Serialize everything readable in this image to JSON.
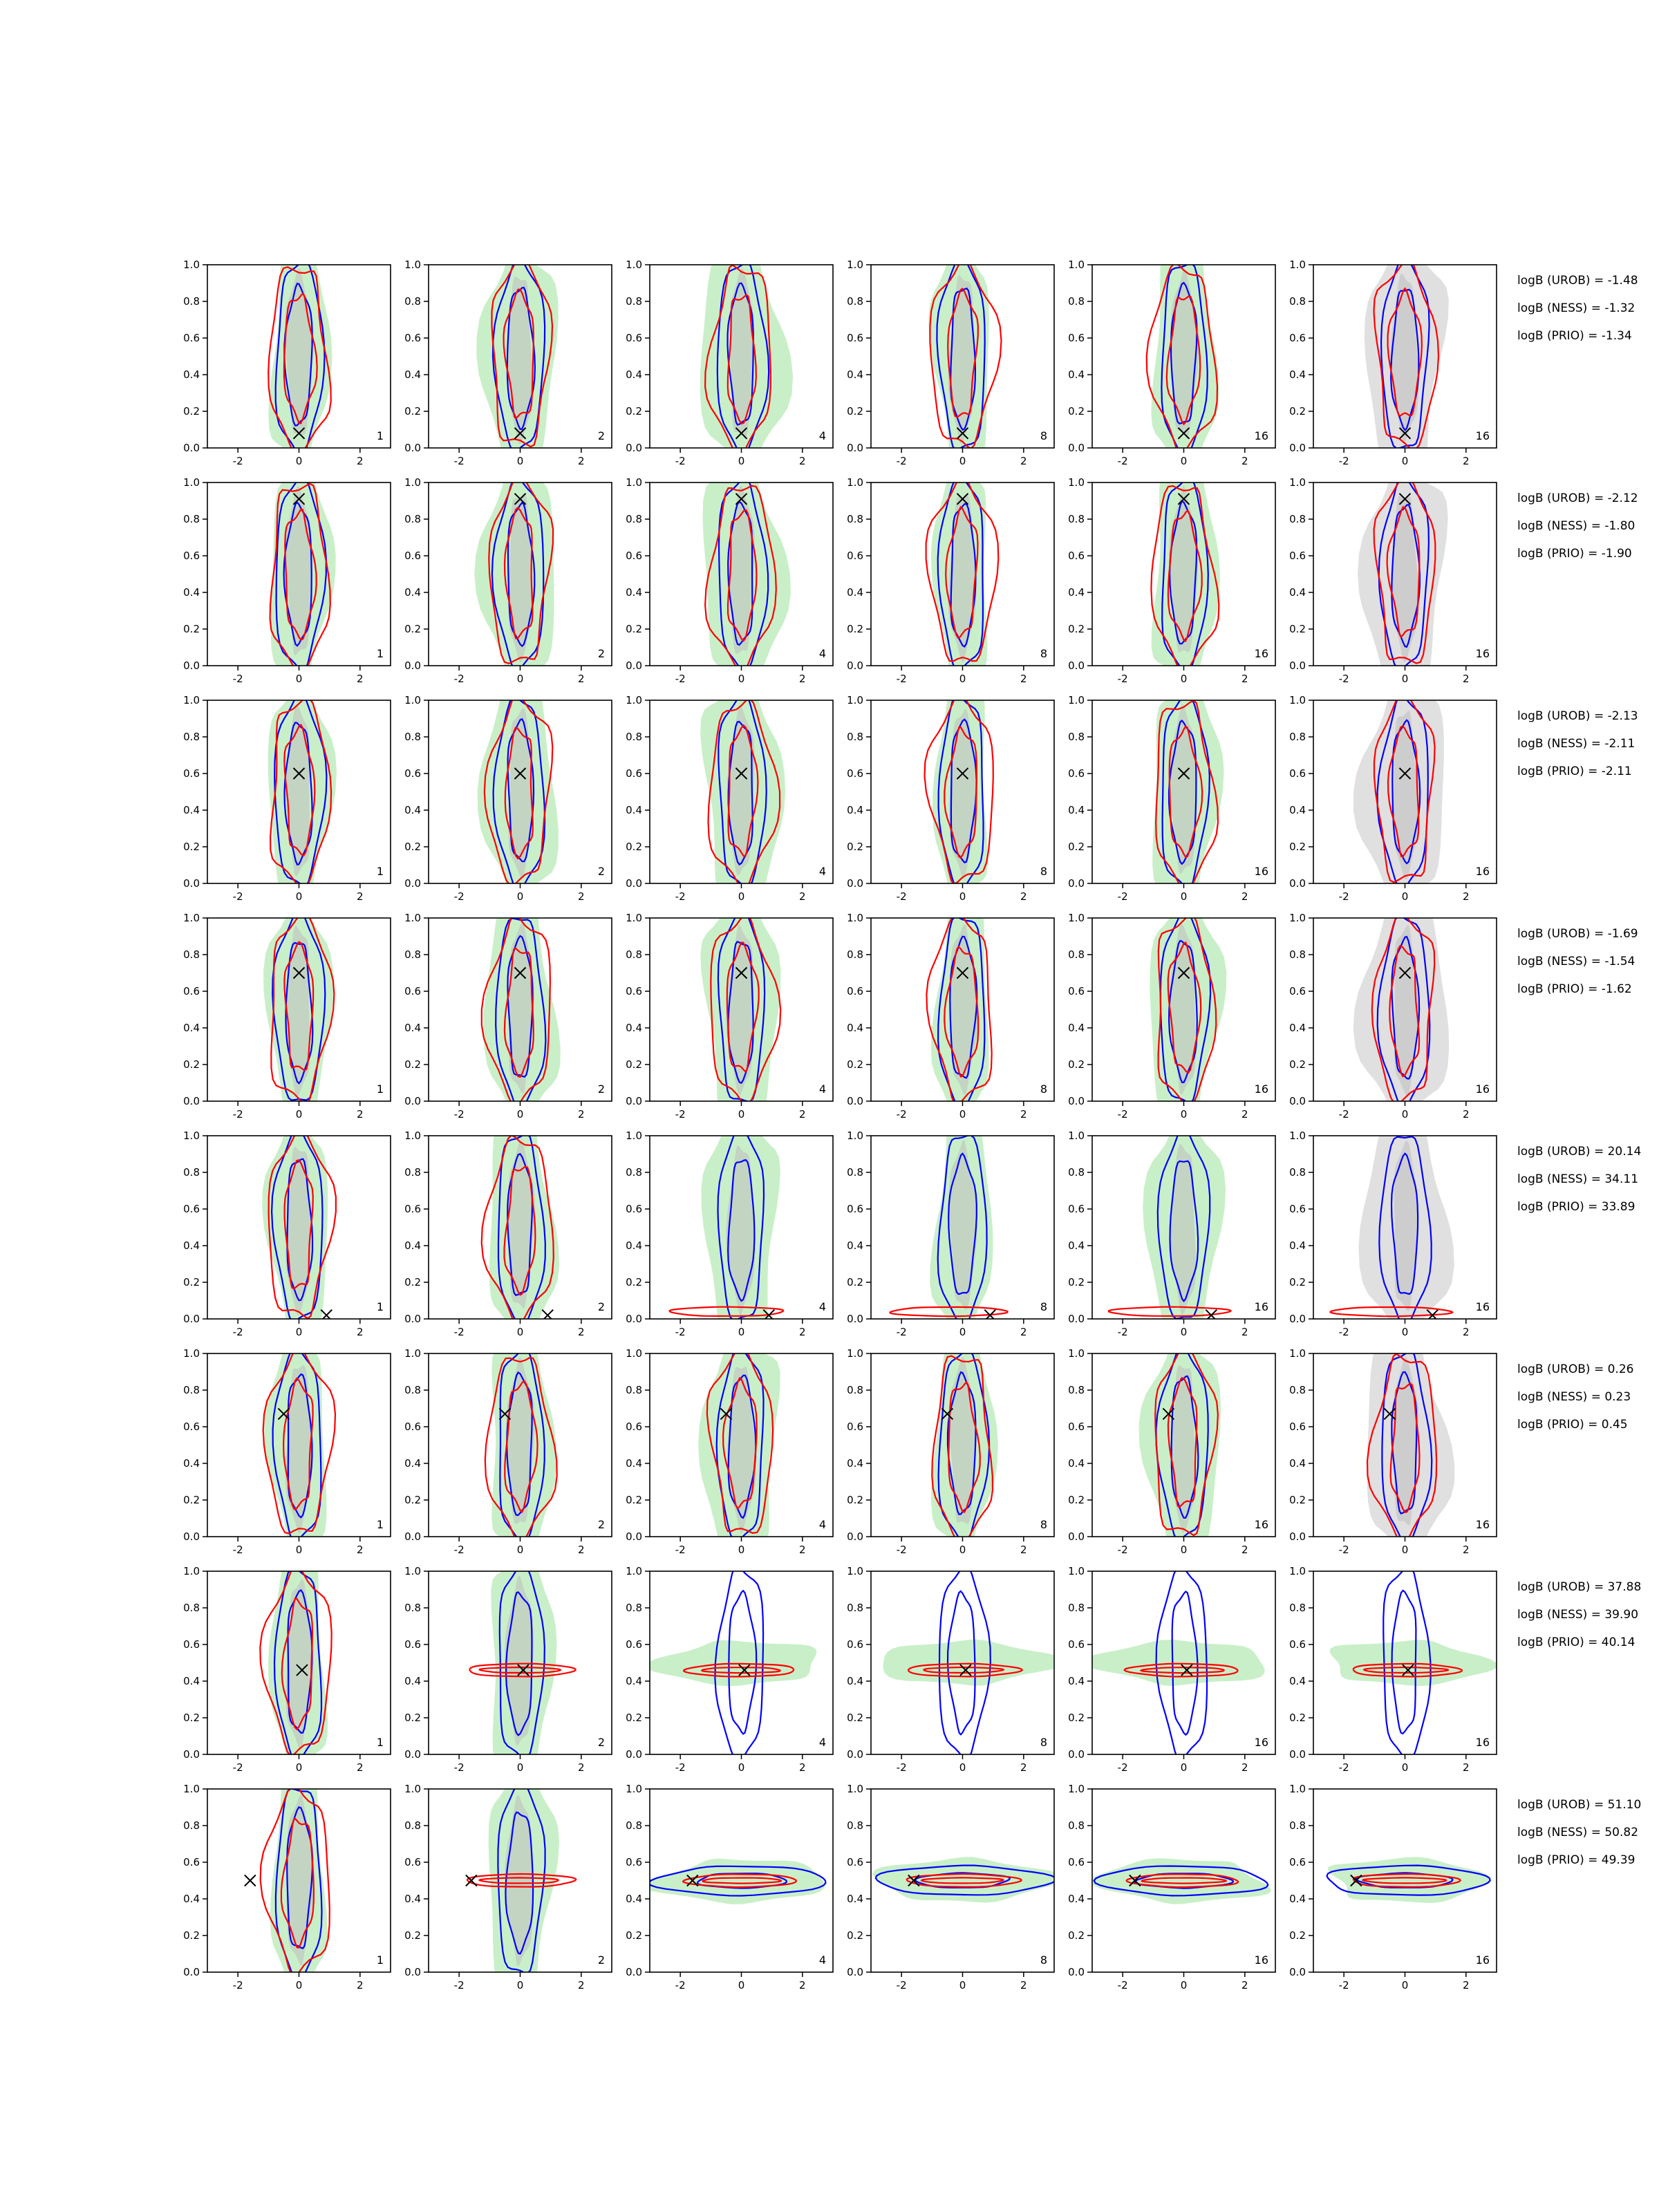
{
  "figure": {
    "rows": 8,
    "cols": 6,
    "xlim": [
      -3,
      3
    ],
    "ylim": [
      0,
      1
    ],
    "x_ticks": [
      "-2",
      "0",
      "2"
    ],
    "y_ticks": [
      "0.0",
      "0.2",
      "0.4",
      "0.6",
      "0.8",
      "1.0"
    ],
    "colors": {
      "prior": "#2ca02c",
      "prior_fill": "#c9efc9",
      "posterior_fill": "#bdbdbd",
      "blue_contour": "#0000ff",
      "red_contour": "#ff0000",
      "marker": "#000000"
    }
  },
  "chart_data": {
    "type": "contour",
    "description_legend": "none",
    "panel_labels": [
      [
        "1",
        "2",
        "4",
        "8",
        "16",
        "16"
      ],
      [
        "1",
        "2",
        "4",
        "8",
        "16",
        "16"
      ],
      [
        "1",
        "2",
        "4",
        "8",
        "16",
        "16"
      ],
      [
        "1",
        "2",
        "4",
        "8",
        "16",
        "16"
      ],
      [
        "1",
        "2",
        "4",
        "8",
        "16",
        "16"
      ],
      [
        "1",
        "2",
        "4",
        "8",
        "16",
        "16"
      ],
      [
        "1",
        "2",
        "4",
        "8",
        "16",
        "16"
      ],
      [
        "1",
        "2",
        "4",
        "8",
        "16",
        "16"
      ]
    ],
    "true_points": [
      {
        "x": 0.0,
        "y": 0.08
      },
      {
        "x": 0.0,
        "y": 0.91
      },
      {
        "x": 0.0,
        "y": 0.6
      },
      {
        "x": 0.0,
        "y": 0.7
      },
      {
        "x": 0.9,
        "y": 0.02
      },
      {
        "x": -0.5,
        "y": 0.67
      },
      {
        "x": 0.1,
        "y": 0.46
      },
      {
        "x": -1.6,
        "y": 0.5
      }
    ],
    "row_annotations": [
      [
        "logB (UROB) = -1.48",
        "logB (NESS) = -1.32",
        "logB (PRIO) = -1.34"
      ],
      [
        "logB (UROB) = -2.12",
        "logB (NESS) = -1.80",
        "logB (PRIO) = -1.90"
      ],
      [
        "logB (UROB) = -2.13",
        "logB (NESS) = -2.11",
        "logB (PRIO) = -2.11"
      ],
      [
        "logB (UROB) = -1.69",
        "logB (NESS) = -1.54",
        "logB (PRIO) = -1.62"
      ],
      [
        "logB (UROB) = 20.14",
        "logB (NESS) = 34.11",
        "logB (PRIO) = 33.89"
      ],
      [
        "logB (UROB) = 0.26",
        "logB (NESS) = 0.23",
        "logB (PRIO) = 0.45"
      ],
      [
        "logB (UROB) = 37.88",
        "logB (NESS) = 39.90",
        "logB (PRIO) = 40.14"
      ],
      [
        "logB (UROB) = 51.10",
        "logB (NESS) = 50.82",
        "logB (PRIO) = 49.39"
      ]
    ],
    "row_modes": [
      "normal",
      "normal",
      "normal",
      "normal",
      "flatlow",
      "normal",
      "horizmid",
      "horizmid"
    ]
  }
}
